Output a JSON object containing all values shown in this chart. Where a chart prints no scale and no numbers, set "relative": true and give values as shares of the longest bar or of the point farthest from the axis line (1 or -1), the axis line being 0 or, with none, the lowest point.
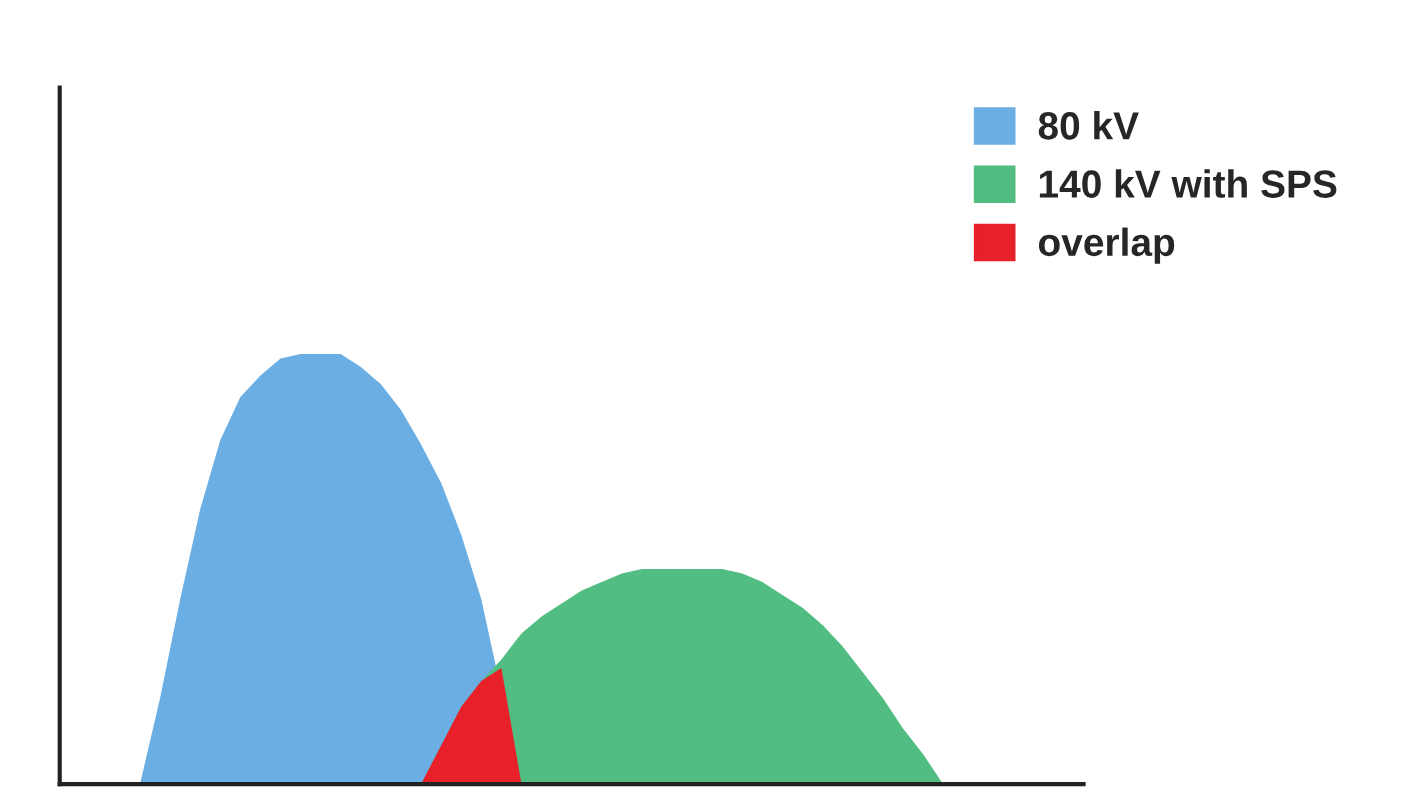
{
  "chart_data": {
    "type": "area",
    "relative": true,
    "legend": "top right",
    "grid": false,
    "categories": [
      null,
      null,
      null,
      null,
      null,
      null,
      null,
      null,
      null,
      null,
      null,
      null,
      null,
      null,
      null,
      null,
      null,
      null,
      null,
      null,
      null,
      null,
      null,
      null,
      null,
      null,
      null,
      null,
      null,
      null,
      null,
      null,
      null,
      null,
      null,
      null,
      null,
      null,
      null,
      null,
      null
    ],
    "series": [
      {
        "name": "80 kV",
        "color": "#6aaee3",
        "values": [
          0,
          0.2,
          0.43,
          0.64,
          0.8,
          0.9,
          0.95,
          0.99,
          1,
          1,
          1,
          0.97,
          0.93,
          0.87,
          0.79,
          0.7,
          0.58,
          0.43,
          null,
          0,
          null,
          null,
          null,
          null,
          null,
          null,
          null,
          null,
          null,
          null,
          null,
          null,
          null,
          null,
          null,
          null,
          null,
          null,
          null,
          null,
          null
        ]
      },
      {
        "name": "140 kV with SPS",
        "color": "#52bd82",
        "values": [
          null,
          null,
          null,
          null,
          null,
          null,
          null,
          null,
          null,
          null,
          null,
          null,
          null,
          null,
          0,
          0.09,
          0.18,
          0.24,
          0.29,
          0.35,
          0.39,
          0.42,
          0.45,
          0.47,
          0.49,
          0.5,
          0.5,
          0.5,
          0.5,
          0.5,
          0.49,
          0.47,
          0.44,
          0.41,
          0.37,
          0.32,
          0.26,
          0.2,
          0.13,
          0.07,
          0
        ]
      },
      {
        "name": "overlap",
        "color": "#e8202a",
        "values": [
          null,
          null,
          null,
          null,
          null,
          null,
          null,
          null,
          null,
          null,
          null,
          null,
          null,
          null,
          0,
          0.09,
          0.18,
          0.24,
          0.27,
          0,
          null,
          null,
          null,
          null,
          null,
          null,
          null,
          null,
          null,
          null,
          null,
          null,
          null,
          null,
          null,
          null,
          null,
          null,
          null,
          null,
          null
        ]
      }
    ]
  }
}
